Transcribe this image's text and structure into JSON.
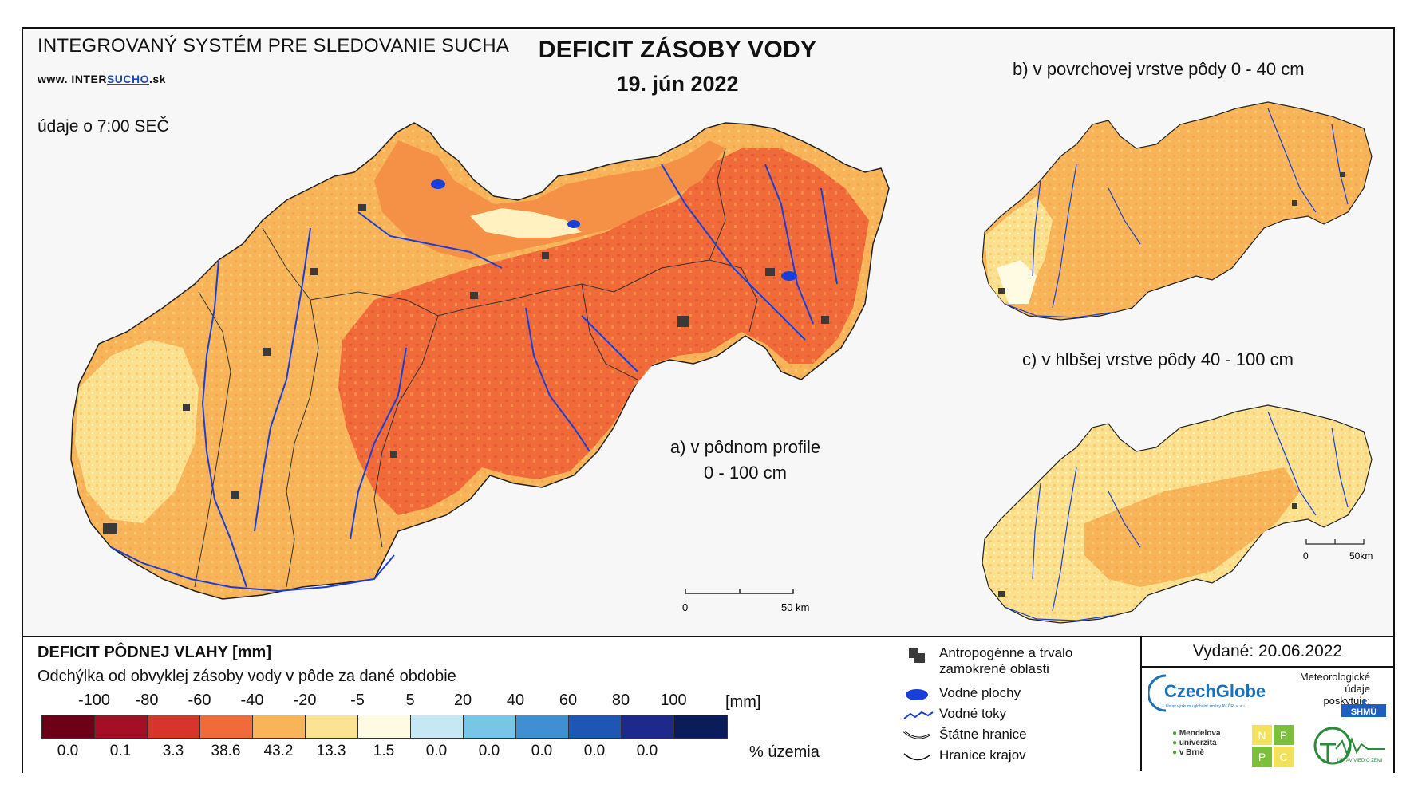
{
  "header": {
    "system_title": "INTEGROVANÝ SYSTÉM PRE SLEDOVANIE SUCHA",
    "website_prefix": "www. INTER",
    "website_mid": "SUCHO",
    "website_suffix": ".sk",
    "time_note": "údaje o 7:00 SEČ",
    "main_title": "DEFICIT ZÁSOBY VODY",
    "date": "19. jún 2022"
  },
  "maps": {
    "a_label_line1": "a) v pôdnom profile",
    "a_label_line2": "0 - 100 cm",
    "b_label": "b) v povrchovej vrstve pôdy 0 - 40 cm",
    "c_label": "c) v hlbšej vrstve pôdy 40 - 100 cm",
    "scale_main": {
      "start": "0",
      "end": "50 km"
    },
    "scale_small": {
      "start": "0",
      "end": "50km"
    }
  },
  "legend": {
    "title": "DEFICIT PÔDNEJ VLAHY [mm]",
    "subtitle": "Odchýlka od obvyklej zásoby vody v pôde za dané obdobie",
    "unit": "[mm]",
    "percent_unit": "% územia",
    "breaks": [
      "-100",
      "-80",
      "-60",
      "-40",
      "-20",
      "-5",
      "5",
      "20",
      "40",
      "60",
      "80",
      "100"
    ],
    "classes": [
      {
        "color": "#6b0016",
        "percent": "0.0"
      },
      {
        "color": "#a50f25",
        "percent": "0.1"
      },
      {
        "color": "#d7352b",
        "percent": "3.3"
      },
      {
        "color": "#f06a3a",
        "percent": "38.6"
      },
      {
        "color": "#f8b458",
        "percent": "43.2"
      },
      {
        "color": "#fbe393",
        "percent": "13.3"
      },
      {
        "color": "#fffbe3",
        "percent": "1.5"
      },
      {
        "color": "#c6e8f4",
        "percent": "0.0"
      },
      {
        "color": "#78c6e6",
        "percent": "0.0"
      },
      {
        "color": "#3f8fd2",
        "percent": "0.0"
      },
      {
        "color": "#1f56b4",
        "percent": "0.0"
      },
      {
        "color": "#1d2a8c",
        "percent": "0.0"
      },
      {
        "color": "#0b1c5a",
        "percent": ""
      }
    ]
  },
  "map_legend": {
    "items": [
      {
        "label_line1": "Antropogénne a trvalo",
        "label_line2": "zamokrené oblasti"
      },
      {
        "label_line1": "Vodné plochy",
        "label_line2": ""
      },
      {
        "label_line1": "Vodné toky",
        "label_line2": ""
      },
      {
        "label_line1": "Štátne hranice",
        "label_line2": ""
      },
      {
        "label_line1": "Hranice krajov",
        "label_line2": ""
      }
    ]
  },
  "footer": {
    "issued": "Vydané: 20.06.2022",
    "czechglobe": "CzechGlobe",
    "czechglobe_small": "Ústav výzkumu globální změny AV ČR, v. v. i.",
    "meteo_line1": "Meteorologické",
    "meteo_line2": "údaje",
    "meteo_line3": "poskytuje:",
    "shmu": "SHMÚ",
    "mendel_line1": "Mendelova",
    "mendel_line2": "univerzita",
    "mendel_line3": "v Brně",
    "nppc": [
      "N",
      "P",
      "P",
      "C"
    ],
    "uvz": "ÚSTAV VIED O ZEMI"
  },
  "colors": {
    "river": "#1a3fd8",
    "urban": "#3a3a3a",
    "border": "#222222"
  }
}
